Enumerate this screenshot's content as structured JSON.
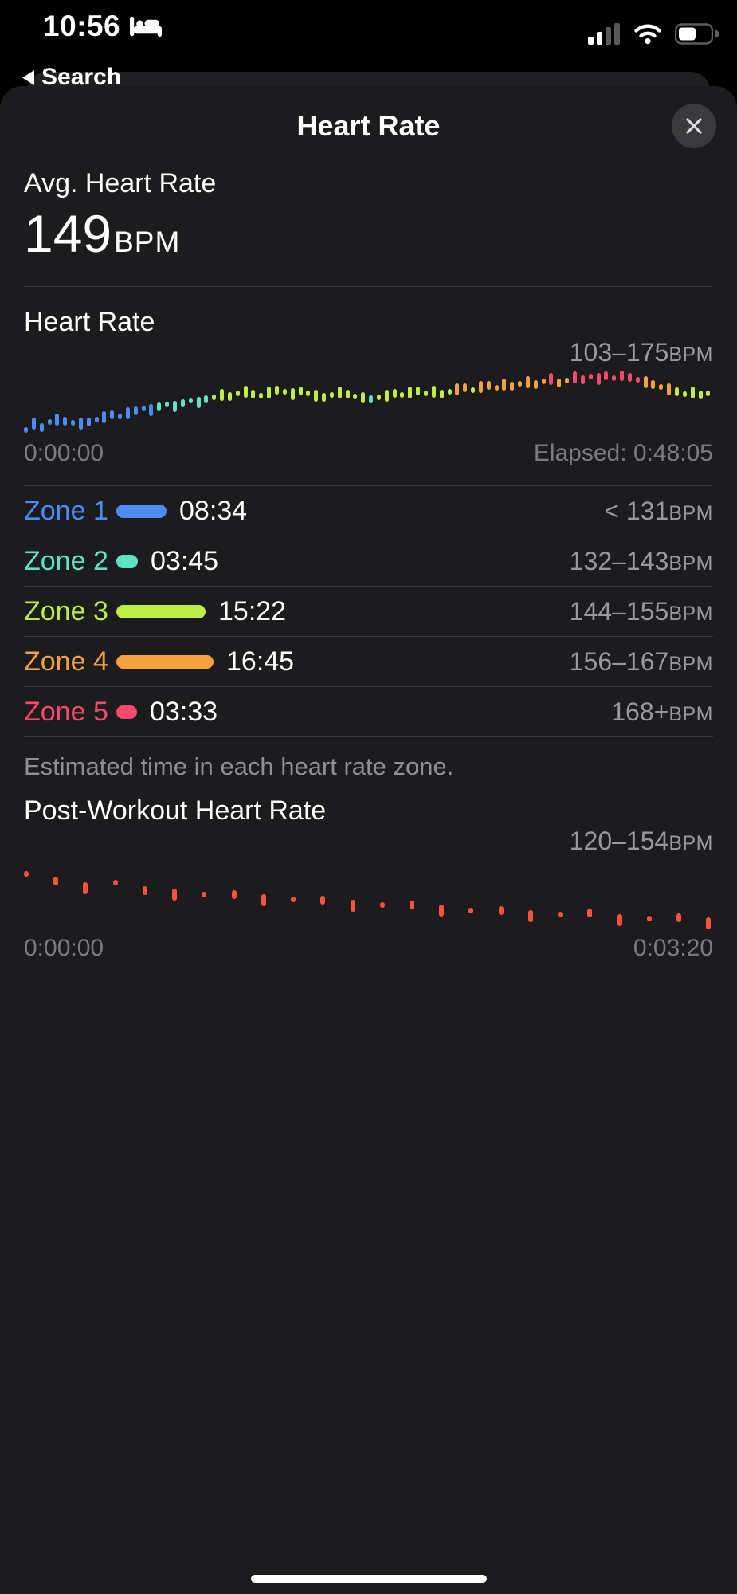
{
  "status_bar": {
    "time": "10:56",
    "back_label": "Search"
  },
  "sheet": {
    "title": "Heart Rate"
  },
  "avg": {
    "label": "Avg. Heart Rate",
    "value": "149",
    "unit": "BPM",
    "color": "#fc513c"
  },
  "zones": {
    "caption": "Estimated time in each heart rate zone.",
    "rows": [
      {
        "label": "Zone 1",
        "color": "#4b8cf5",
        "time": "08:34",
        "range": "< 131",
        "unit": "BPM"
      },
      {
        "label": "Zone 2",
        "color": "#5fe3c5",
        "time": "03:45",
        "range": "132–143",
        "unit": "BPM"
      },
      {
        "label": "Zone 3",
        "color": "#bdee46",
        "time": "15:22",
        "range": "144–155",
        "unit": "BPM"
      },
      {
        "label": "Zone 4",
        "color": "#f5a13d",
        "time": "16:45",
        "range": "156–167",
        "unit": "BPM"
      },
      {
        "label": "Zone 5",
        "color": "#f7486d",
        "time": "03:33",
        "range": "168+",
        "unit": "BPM"
      }
    ]
  },
  "chart_data": [
    {
      "type": "bar",
      "title": "Heart Rate",
      "range_label": "103–175",
      "unit": "BPM",
      "x_start": "0:00:00",
      "x_end": "Elapsed: 0:48:05",
      "ylim": [
        100,
        180
      ],
      "zone_thresholds": [
        131,
        143,
        155,
        167
      ],
      "zone_colors": [
        "#4b8cf5",
        "#5fe3c5",
        "#bdee46",
        "#f5a13d",
        "#f7486d"
      ],
      "values": [
        104,
        112,
        107,
        114,
        117,
        115,
        113,
        112,
        114,
        117,
        120,
        123,
        121,
        125,
        128,
        131,
        129,
        133,
        136,
        134,
        138,
        141,
        139,
        143,
        146,
        149,
        147,
        151,
        153,
        150,
        148,
        152,
        155,
        153,
        150,
        154,
        151,
        148,
        146,
        149,
        152,
        150,
        147,
        145,
        143,
        146,
        148,
        151,
        149,
        152,
        154,
        151,
        153,
        150,
        153,
        156,
        158,
        155,
        159,
        161,
        158,
        162,
        160,
        163,
        165,
        162,
        166,
        169,
        164,
        167,
        171,
        168,
        172,
        169,
        173,
        170,
        174,
        171,
        168,
        165,
        162,
        159,
        156,
        153,
        150,
        152,
        149,
        151
      ]
    },
    {
      "type": "scatter",
      "title": "Post-Workout Heart Rate",
      "range_label": "120–154",
      "unit": "BPM",
      "x_start": "0:00:00",
      "x_end": "0:03:20",
      "ylim": [
        112,
        162
      ],
      "color": "#fc513c",
      "values": [
        154,
        150,
        146,
        148,
        143,
        141,
        139,
        140,
        137,
        135,
        136,
        133,
        131,
        132,
        129,
        127,
        128,
        125,
        124,
        126,
        122,
        121,
        123,
        120
      ]
    }
  ]
}
